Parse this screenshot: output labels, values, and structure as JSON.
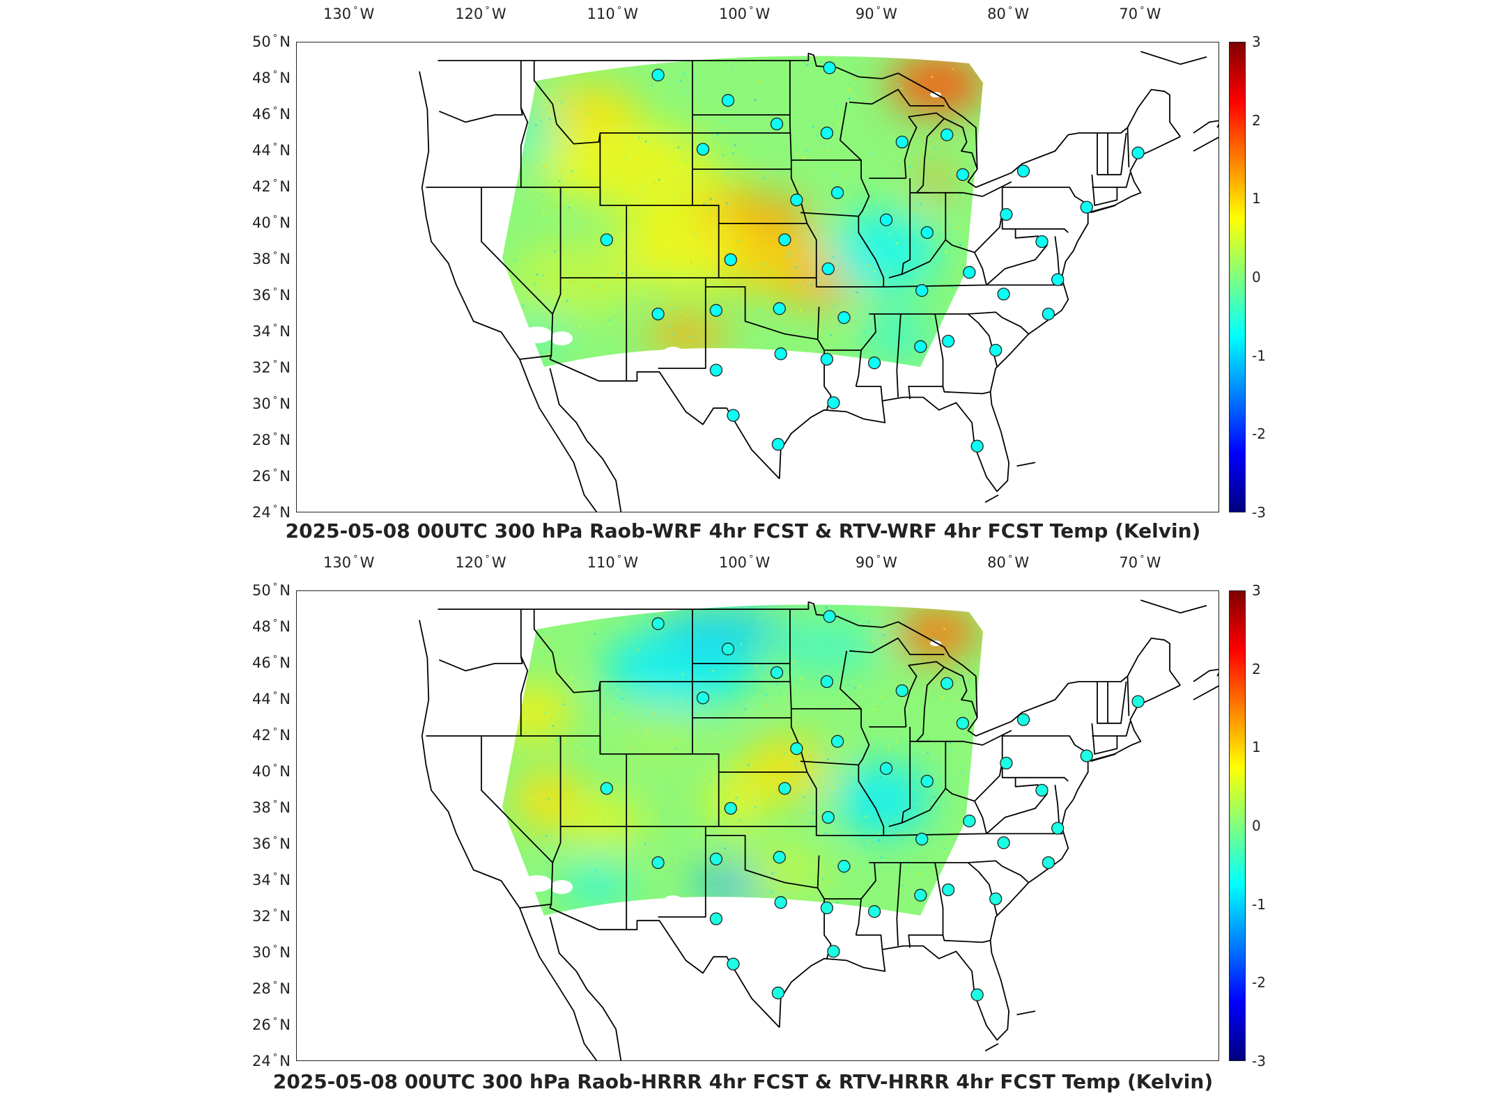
{
  "panels": [
    {
      "title": "2025-05-08 00UTC 300 hPa Raob-WRF 4hr FCST & RTV-WRF 4hr FCST Temp (Kelvin)",
      "field_style": "warm"
    },
    {
      "title": "2025-05-08 00UTC 300 hPa Raob-HRRR 4hr FCST & RTV-HRRR 4hr FCST Temp (Kelvin)",
      "field_style": "cool"
    }
  ],
  "lon_labels": [
    {
      "deg": "130",
      "hem": "W"
    },
    {
      "deg": "120",
      "hem": "W"
    },
    {
      "deg": "110",
      "hem": "W"
    },
    {
      "deg": "100",
      "hem": "W"
    },
    {
      "deg": "90",
      "hem": "W"
    },
    {
      "deg": "80",
      "hem": "W"
    },
    {
      "deg": "70",
      "hem": "W"
    }
  ],
  "lat_labels": [
    {
      "deg": "50",
      "hem": "N"
    },
    {
      "deg": "48",
      "hem": "N"
    },
    {
      "deg": "46",
      "hem": "N"
    },
    {
      "deg": "44",
      "hem": "N"
    },
    {
      "deg": "42",
      "hem": "N"
    },
    {
      "deg": "40",
      "hem": "N"
    },
    {
      "deg": "38",
      "hem": "N"
    },
    {
      "deg": "36",
      "hem": "N"
    },
    {
      "deg": "34",
      "hem": "N"
    },
    {
      "deg": "32",
      "hem": "N"
    },
    {
      "deg": "30",
      "hem": "N"
    },
    {
      "deg": "28",
      "hem": "N"
    },
    {
      "deg": "26",
      "hem": "N"
    },
    {
      "deg": "24",
      "hem": "N"
    }
  ],
  "colorbar": {
    "ticks": [
      "3",
      "2",
      "1",
      "0",
      "-1",
      "-2",
      "-3"
    ],
    "min": -3,
    "max": 3,
    "colors": [
      "#00007f",
      "#0000ff",
      "#00ffff",
      "#7fff7f",
      "#ffff00",
      "#ff0000",
      "#7f0000"
    ]
  },
  "raob_stations": [
    [
      -106.6,
      48.2
    ],
    [
      -101.3,
      46.8
    ],
    [
      -97.6,
      45.5
    ],
    [
      -103.2,
      44.1
    ],
    [
      -93.6,
      48.6
    ],
    [
      -93.8,
      45.0
    ],
    [
      -88.1,
      44.5
    ],
    [
      -84.7,
      44.9
    ],
    [
      -83.5,
      42.7
    ],
    [
      -78.9,
      42.9
    ],
    [
      -70.2,
      43.9
    ],
    [
      -96.1,
      41.3
    ],
    [
      -93.0,
      41.7
    ],
    [
      -89.3,
      40.2
    ],
    [
      -86.2,
      39.5
    ],
    [
      -80.2,
      40.5
    ],
    [
      -77.5,
      39.0
    ],
    [
      -74.1,
      40.9
    ],
    [
      -110.5,
      39.1
    ],
    [
      -101.1,
      38.0
    ],
    [
      -97.0,
      39.1
    ],
    [
      -93.7,
      37.5
    ],
    [
      -86.6,
      36.3
    ],
    [
      -83.0,
      37.3
    ],
    [
      -80.4,
      36.1
    ],
    [
      -76.3,
      36.9
    ],
    [
      -77.0,
      35.0
    ],
    [
      -106.6,
      35.0
    ],
    [
      -102.2,
      35.2
    ],
    [
      -97.4,
      35.3
    ],
    [
      -92.5,
      34.8
    ],
    [
      -84.6,
      33.5
    ],
    [
      -86.7,
      33.2
    ],
    [
      -81.0,
      33.0
    ],
    [
      -90.2,
      32.3
    ],
    [
      -93.8,
      32.5
    ],
    [
      -97.3,
      32.8
    ],
    [
      -102.2,
      31.9
    ],
    [
      -93.3,
      30.1
    ],
    [
      -100.9,
      29.4
    ],
    [
      -97.5,
      27.8
    ],
    [
      -82.4,
      27.7
    ]
  ]
}
